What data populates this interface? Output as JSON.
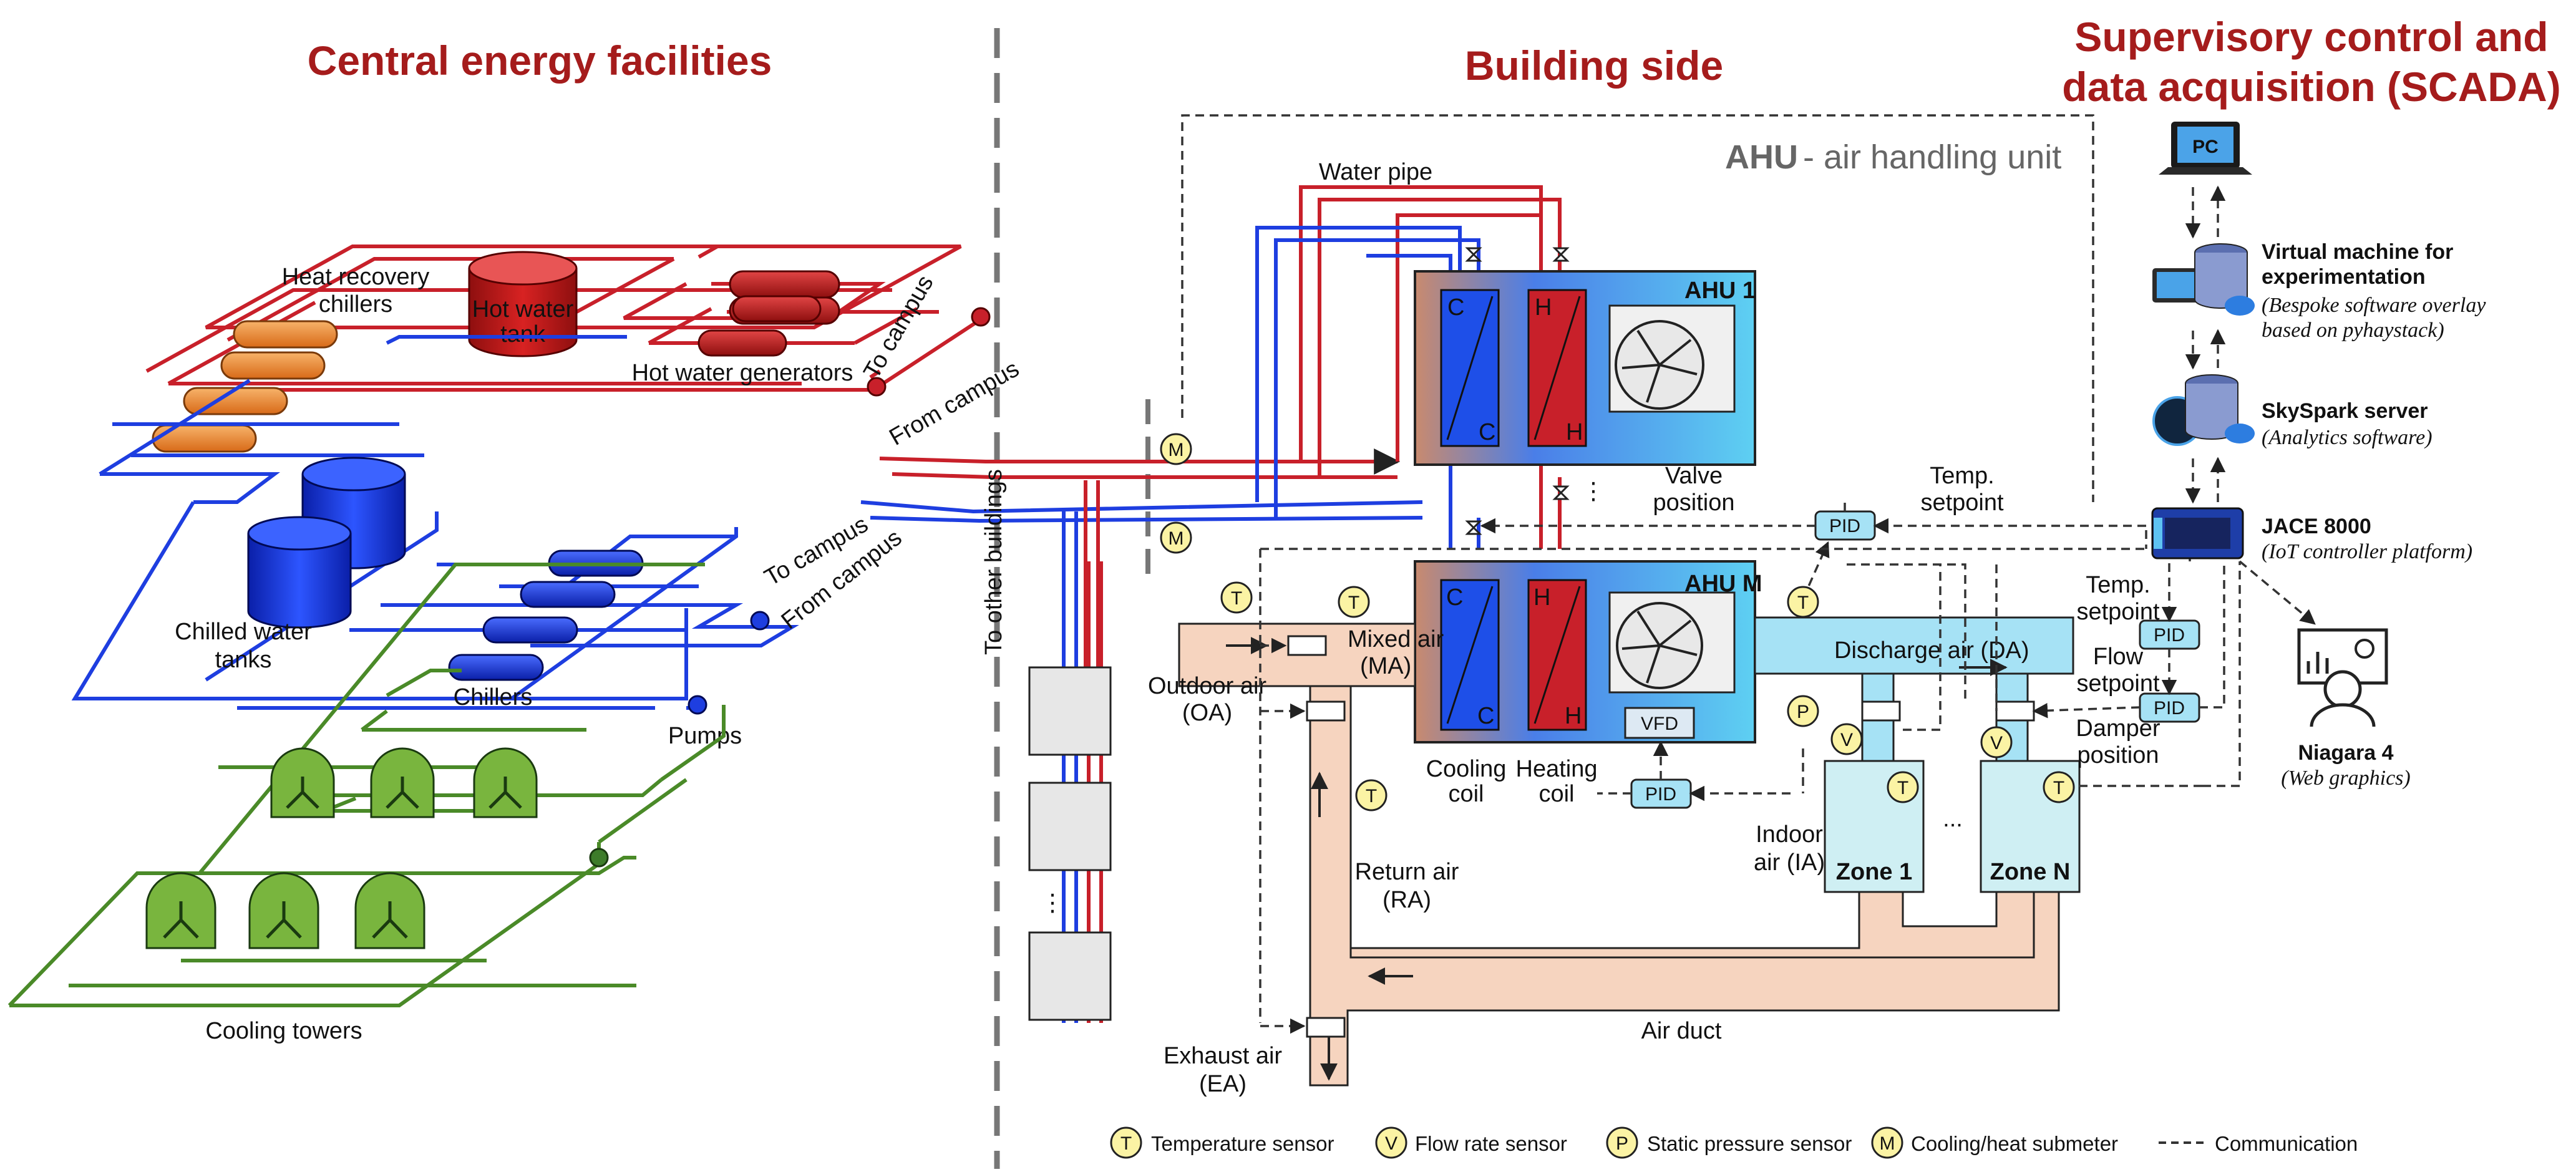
{
  "headers": {
    "central": "Central energy facilities",
    "building": "Building side",
    "scada_line1": "Supervisory control and",
    "scada_line2": "data acquisition (SCADA)"
  },
  "central": {
    "heat_recovery_chillers": [
      "Heat recovery",
      "chillers"
    ],
    "hot_water_tank": [
      "Hot water",
      "tank"
    ],
    "hot_water_generators": "Hot water generators",
    "chilled_water_tanks": [
      "Chilled water",
      "tanks"
    ],
    "chillers": "Chillers",
    "pumps": "Pumps",
    "cooling_towers": "Cooling towers",
    "to_campus": "To campus",
    "from_campus": "From campus"
  },
  "building": {
    "ahu_title_bold": "AHU",
    "ahu_title_rest": " - air handling unit",
    "water_pipe": "Water pipe",
    "ahu1": "AHU 1",
    "ahum": "AHU M",
    "coil_c": "C",
    "coil_h": "H",
    "vfd": "VFD",
    "pid": "PID",
    "valve_position": [
      "Valve",
      "position"
    ],
    "temp_setpoint": [
      "Temp.",
      "setpoint"
    ],
    "flow_setpoint": [
      "Flow",
      "setpoint"
    ],
    "damper_position": [
      "Damper",
      "position"
    ],
    "mixed_air": [
      "Mixed air",
      "(MA)"
    ],
    "outdoor_air": [
      "Outdoor air",
      "(OA)"
    ],
    "discharge_air": "Discharge air (DA)",
    "cooling_coil": [
      "Cooling",
      "coil"
    ],
    "heating_coil": [
      "Heating",
      "coil"
    ],
    "indoor_air": [
      "Indoor",
      "air (IA)"
    ],
    "zone1": "Zone 1",
    "zonen": "Zone N",
    "return_air": [
      "Return air",
      "(RA)"
    ],
    "exhaust_air": [
      "Exhaust air",
      "(EA)"
    ],
    "air_duct": "Air duct",
    "to_other_buildings": "To other buildings",
    "ellipsis": "...",
    "vdots": "⋮"
  },
  "scada": {
    "pc": "PC",
    "vm_title": [
      "Virtual machine for",
      "experimentation"
    ],
    "vm_sub": [
      "(Bespoke software overlay",
      "based on pyhaystack)"
    ],
    "skyspark_title": "SkySpark server",
    "skyspark_sub": "(Analytics software)",
    "jace_title": "JACE 8000",
    "jace_sub": "(IoT controller platform)",
    "niagara_title": "Niagara 4",
    "niagara_sub": "(Web graphics)"
  },
  "sensors": {
    "T": "T",
    "V": "V",
    "P": "P",
    "M": "M"
  },
  "legend": {
    "temperature": "Temperature sensor",
    "flow": "Flow rate sensor",
    "pressure": "Static pressure sensor",
    "submeter": "Cooling/heat submeter",
    "communication": "Communication"
  },
  "colors": {
    "hot_water": "#c8202a",
    "chilled_water": "#1e3ee0",
    "condenser_water": "#4a8a28",
    "header_text": "#a51c1c",
    "duct": "#f6d4bf",
    "pid": "#a6e2f5",
    "sensor": "#fbf3a4"
  }
}
